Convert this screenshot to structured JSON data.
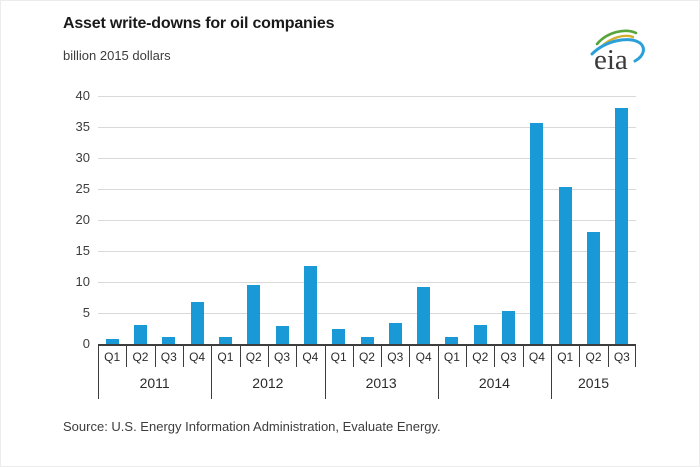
{
  "header": {
    "title": "Asset write-downs for oil companies",
    "subtitle": "billion 2015 dollars"
  },
  "logo": {
    "text": "eia",
    "swoosh_colors": {
      "green": "#56a63c",
      "gold": "#d2b02f",
      "blue": "#2ba0d8"
    }
  },
  "footer": {
    "source": "Source: U.S. Energy Information Administration, Evaluate Energy."
  },
  "chart_data": {
    "type": "bar",
    "title": "Asset write-downs for oil companies",
    "xlabel": "",
    "ylabel": "billion 2015 dollars",
    "ylim": [
      0,
      40
    ],
    "ytick_step": 5,
    "grid": true,
    "legend": "none",
    "bar_color": "#1999d6",
    "axis_color": "#3d3d3d",
    "gridline_color": "#d9d9d9",
    "years": [
      {
        "year": "2011",
        "quarters": [
          "Q1",
          "Q2",
          "Q3",
          "Q4"
        ],
        "values": [
          0.8,
          3.1,
          1.1,
          6.8
        ]
      },
      {
        "year": "2012",
        "quarters": [
          "Q1",
          "Q2",
          "Q3",
          "Q4"
        ],
        "values": [
          1.2,
          9.5,
          2.9,
          12.6
        ]
      },
      {
        "year": "2013",
        "quarters": [
          "Q1",
          "Q2",
          "Q3",
          "Q4"
        ],
        "values": [
          2.5,
          1.2,
          3.4,
          9.2
        ]
      },
      {
        "year": "2014",
        "quarters": [
          "Q1",
          "Q2",
          "Q3",
          "Q4"
        ],
        "values": [
          1.1,
          3.0,
          5.4,
          35.7
        ]
      },
      {
        "year": "2015",
        "quarters": [
          "Q1",
          "Q2",
          "Q3"
        ],
        "values": [
          25.3,
          18.0,
          38.0
        ]
      }
    ]
  }
}
